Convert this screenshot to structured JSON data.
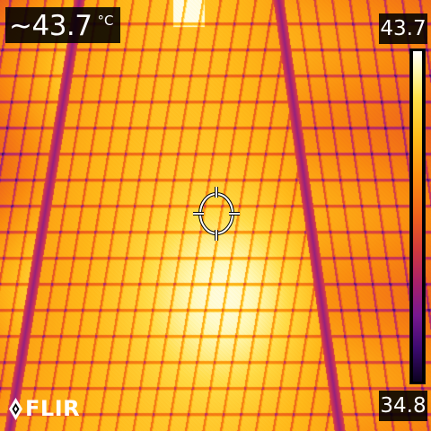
{
  "readout": {
    "value": "~43.7",
    "unit": "°C"
  },
  "scale": {
    "max": "43.7",
    "min": "34.8"
  },
  "logo": {
    "text": "FLIR"
  },
  "palette": {
    "name": "iron",
    "hot": "#ffffff",
    "warm": "#ffbd1a",
    "mid": "#f0601c",
    "cool": "#781890",
    "cold": "#0c0220"
  },
  "icons": {
    "spot_meter": "crosshair-icon",
    "brand_mark": "flir-flame-icon"
  }
}
